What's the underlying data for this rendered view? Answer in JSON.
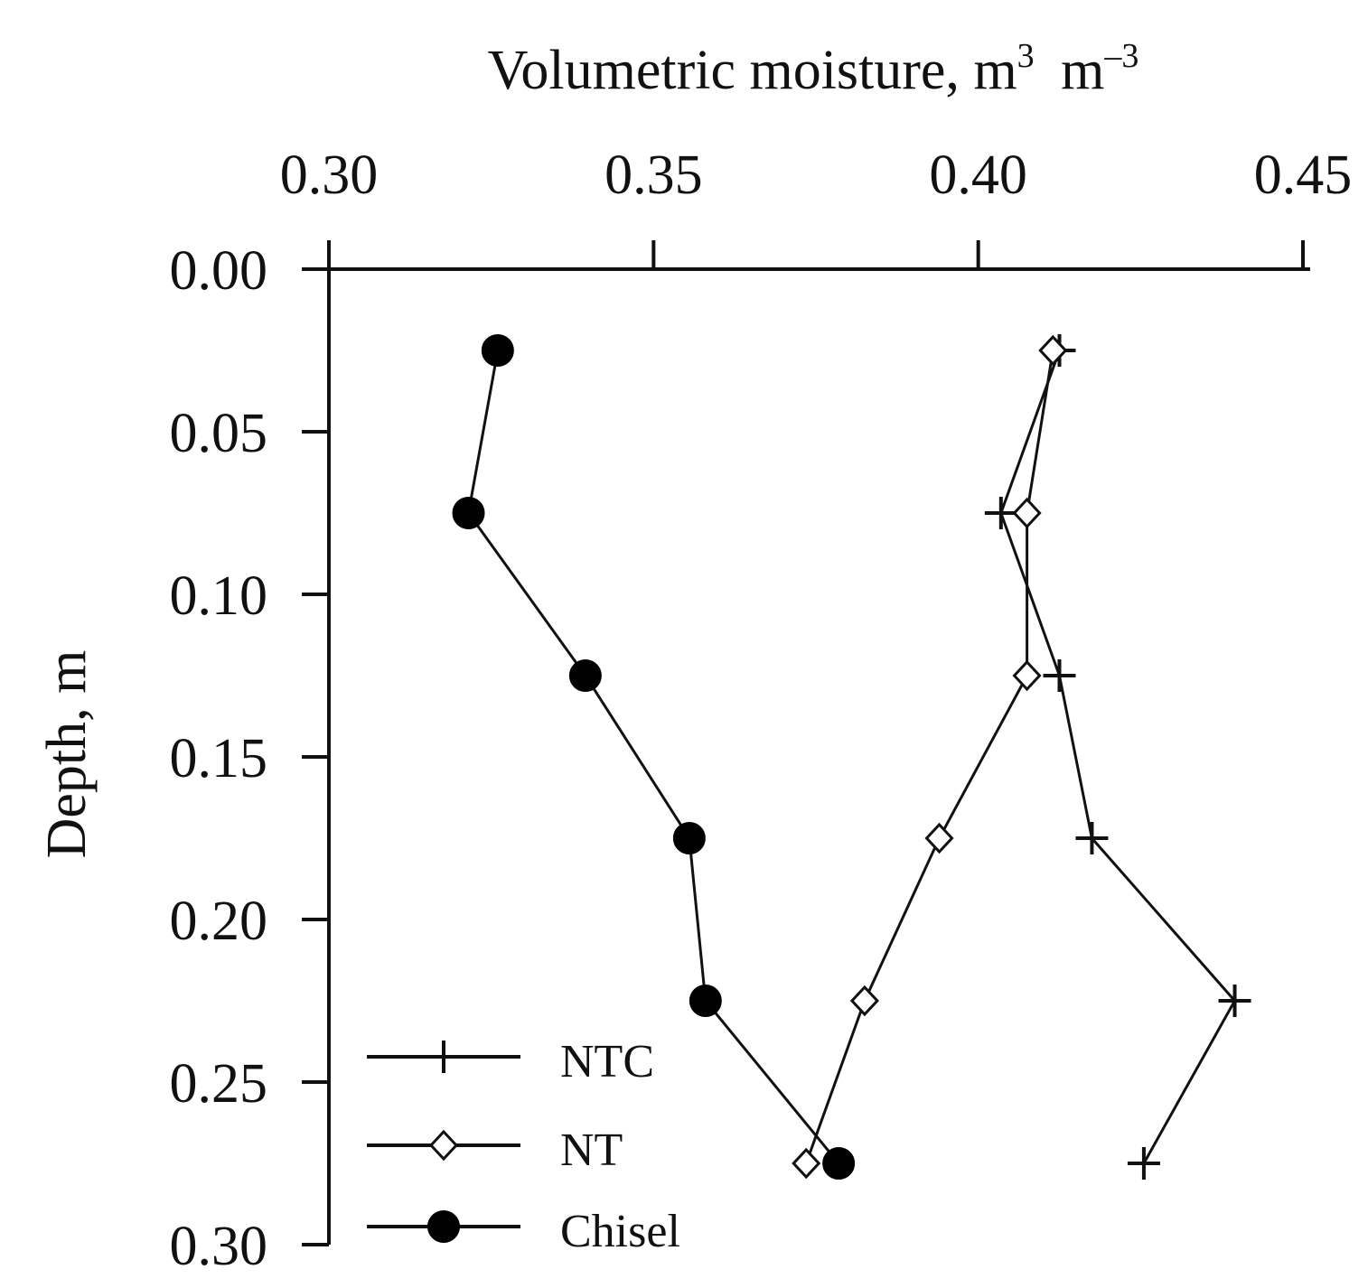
{
  "chart_data": {
    "type": "line",
    "title": "",
    "xlabel": {
      "base": "Volumetric moisture,",
      "unit1": "m",
      "exp1": "3",
      "unit2": "m",
      "exp2": "–3"
    },
    "ylabel": "Depth, m",
    "xlim": [
      0.3,
      0.45
    ],
    "ylim": [
      0.0,
      0.3
    ],
    "y_inverted": true,
    "x_axis_position": "top",
    "x_ticks": [
      "0.30",
      "0.35",
      "0.40",
      "0.45"
    ],
    "y_ticks": [
      "0.00",
      "0.05",
      "0.10",
      "0.15",
      "0.20",
      "0.25",
      "0.30"
    ],
    "legend_position": "bottom-left",
    "series": [
      {
        "name": "NTC",
        "marker": "plus",
        "x": [
          0.4125,
          0.4035,
          0.4125,
          0.4175,
          0.4395,
          0.4255
        ],
        "y": [
          0.025,
          0.075,
          0.125,
          0.175,
          0.225,
          0.275
        ]
      },
      {
        "name": "NT",
        "marker": "diamond-open",
        "x": [
          0.4115,
          0.4075,
          0.4075,
          0.394,
          0.3825,
          0.3735
        ],
        "y": [
          0.025,
          0.075,
          0.125,
          0.175,
          0.225,
          0.275
        ]
      },
      {
        "name": "Chisel",
        "marker": "circle-filled",
        "x": [
          0.326,
          0.3215,
          0.3395,
          0.3555,
          0.358,
          0.3785
        ],
        "y": [
          0.025,
          0.075,
          0.125,
          0.175,
          0.225,
          0.275
        ]
      }
    ]
  }
}
